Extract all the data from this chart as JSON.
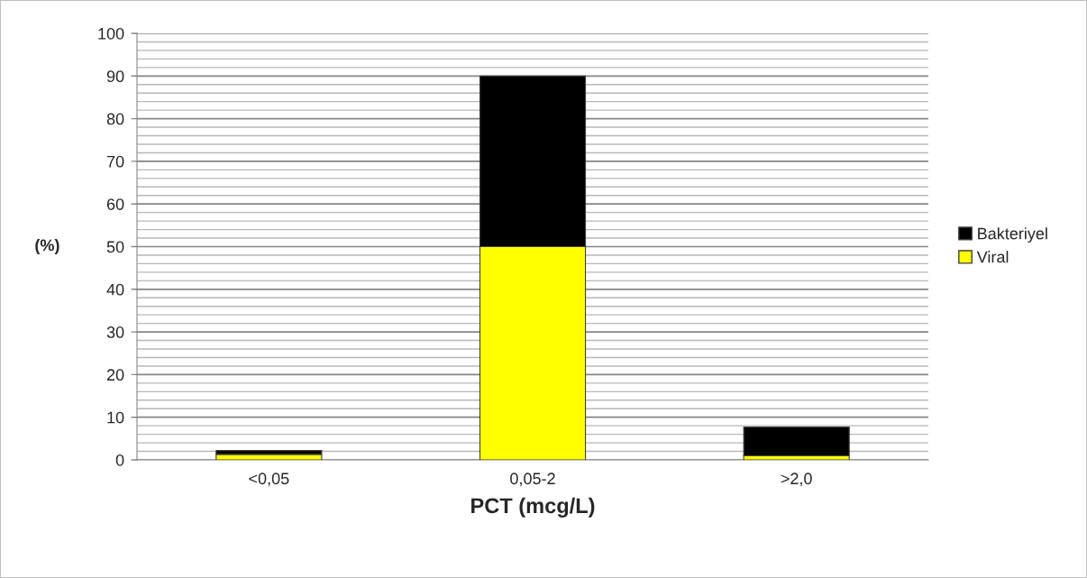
{
  "chart_data": {
    "type": "bar",
    "stacked": true,
    "xlabel": "PCT (mcg/L)",
    "ylabel": "(%)",
    "categories": [
      "<0,05",
      "0,05-2",
      ">2,0"
    ],
    "series": [
      {
        "name": "Viral",
        "color": "#ffff00",
        "values": [
          1.3,
          50,
          1.0
        ]
      },
      {
        "name": "Bakteriyel",
        "color": "#000000",
        "values": [
          0.9,
          40,
          6.7
        ]
      }
    ],
    "ylim": [
      0,
      100
    ],
    "yticks": [
      0,
      {
        "value": 2,
        "label": null
      },
      {
        "value": 4,
        "label": null
      },
      {
        "value": 6,
        "label": null
      },
      {
        "value": 8,
        "label": null
      },
      10,
      {
        "value": 12,
        "label": null
      },
      {
        "value": 14,
        "label": null
      },
      {
        "value": 16,
        "label": null
      },
      {
        "value": 18,
        "label": null
      },
      20,
      {
        "value": 22,
        "label": null
      },
      {
        "value": 24,
        "label": null
      },
      {
        "value": 26,
        "label": null
      },
      {
        "value": 28,
        "label": null
      },
      30,
      {
        "value": 32,
        "label": null
      },
      {
        "value": 34,
        "label": null
      },
      {
        "value": 36,
        "label": null
      },
      {
        "value": 38,
        "label": null
      },
      40,
      {
        "value": 42,
        "label": null
      },
      {
        "value": 44,
        "label": null
      },
      {
        "value": 46,
        "label": null
      },
      {
        "value": 48,
        "label": null
      },
      50,
      {
        "value": 52,
        "label": null
      },
      {
        "value": 54,
        "label": null
      },
      {
        "value": 56,
        "label": null
      },
      {
        "value": 58,
        "label": null
      },
      60,
      {
        "value": 62,
        "label": null
      },
      {
        "value": 64,
        "label": null
      },
      {
        "value": 66,
        "label": null
      },
      {
        "value": 68,
        "label": null
      },
      70,
      {
        "value": 72,
        "label": null
      },
      {
        "value": 74,
        "label": null
      },
      {
        "value": 76,
        "label": null
      },
      {
        "value": 78,
        "label": null
      },
      80,
      {
        "value": 82,
        "label": null
      },
      {
        "value": 84,
        "label": null
      },
      {
        "value": 86,
        "label": null
      },
      {
        "value": 88,
        "label": null
      },
      90,
      {
        "value": 92,
        "label": null
      },
      {
        "value": 94,
        "label": null
      },
      {
        "value": 96,
        "label": null
      },
      {
        "value": 98,
        "label": null
      },
      100
    ],
    "grid": "y",
    "legend": "right"
  }
}
